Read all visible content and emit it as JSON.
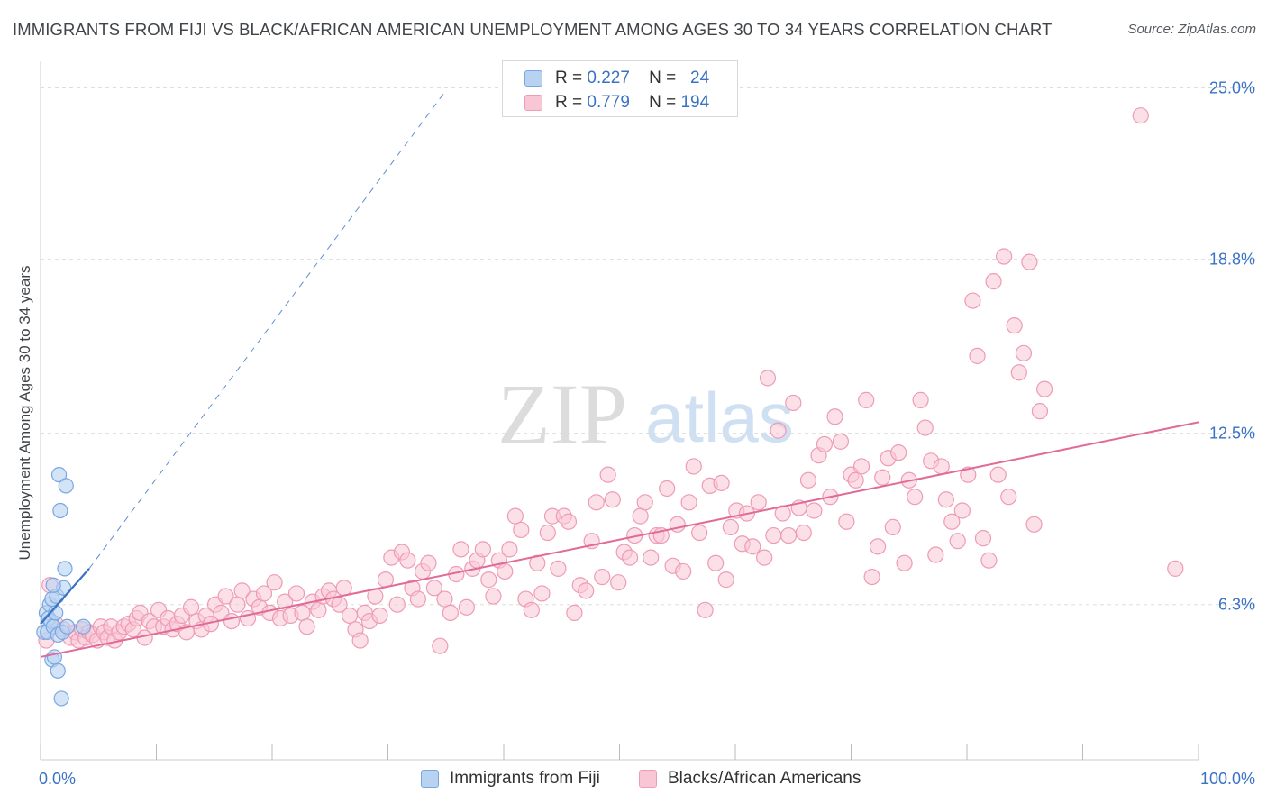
{
  "title": "IMMIGRANTS FROM FIJI VS BLACK/AFRICAN AMERICAN UNEMPLOYMENT AMONG AGES 30 TO 34 YEARS CORRELATION CHART",
  "source": "Source: ZipAtlas.com",
  "watermark": {
    "zip": "ZIP",
    "atlas": "atlas"
  },
  "colors": {
    "fiji_fill": "#b8d2f2",
    "fiji_stroke": "#7aa6e0",
    "fiji_line": "#3a72c4",
    "black_fill": "#f9c6d6",
    "black_stroke": "#ee9bb6",
    "black_line": "#e06b98",
    "axis_label": "#3a72c4",
    "grid": "#dddddd"
  },
  "legend_top": [
    {
      "r_label": "R =",
      "r_value": "0.227",
      "n_label": "N =",
      "n_value": "24"
    },
    {
      "r_label": "R =",
      "r_value": "0.779",
      "n_label": "N =",
      "n_value": "194"
    }
  ],
  "legend_bottom": [
    "Immigrants from Fiji",
    "Blacks/African Americans"
  ],
  "chart_data": {
    "type": "scatter",
    "title": "IMMIGRANTS FROM FIJI VS BLACK/AFRICAN AMERICAN UNEMPLOYMENT AMONG AGES 30 TO 34 YEARS CORRELATION CHART",
    "xlabel": "",
    "ylabel": "Unemployment Among Ages 30 to 34 years",
    "xlim": [
      0,
      100
    ],
    "ylim": [
      0,
      26
    ],
    "x_tick_labels": [
      "0.0%",
      "100.0%"
    ],
    "y_ticks": [
      6.3,
      12.5,
      18.8,
      25.0
    ],
    "y_tick_labels": [
      "6.3%",
      "12.5%",
      "18.8%",
      "25.0%"
    ],
    "grid": true,
    "legend_position": "top-center",
    "series": [
      {
        "name": "Immigrants from Fiji",
        "r": 0.227,
        "n": 24,
        "trend_solid": [
          [
            0,
            5.6
          ],
          [
            4.2,
            7.6
          ]
        ],
        "trend_dashed": [
          [
            4.2,
            7.6
          ],
          [
            35,
            24.9
          ]
        ],
        "points": [
          [
            0.3,
            5.3
          ],
          [
            0.5,
            6.0
          ],
          [
            0.6,
            5.3
          ],
          [
            0.7,
            5.8
          ],
          [
            0.8,
            6.3
          ],
          [
            0.9,
            5.7
          ],
          [
            1.0,
            4.3
          ],
          [
            1.0,
            6.5
          ],
          [
            1.1,
            5.5
          ],
          [
            1.2,
            4.4
          ],
          [
            1.3,
            6.0
          ],
          [
            1.4,
            6.6
          ],
          [
            1.5,
            3.9
          ],
          [
            1.5,
            5.2
          ],
          [
            1.6,
            11.0
          ],
          [
            1.7,
            9.7
          ],
          [
            1.8,
            2.9
          ],
          [
            1.9,
            5.3
          ],
          [
            2.0,
            6.9
          ],
          [
            2.1,
            7.6
          ],
          [
            2.2,
            10.6
          ],
          [
            2.3,
            5.5
          ],
          [
            1.1,
            7.0
          ],
          [
            3.7,
            5.5
          ]
        ]
      },
      {
        "name": "Blacks/African Americans",
        "r": 0.779,
        "n": 194,
        "trend": [
          [
            0,
            4.4
          ],
          [
            100,
            12.9
          ]
        ],
        "points": [
          [
            0.5,
            5.0
          ],
          [
            0.8,
            7.0
          ],
          [
            1.3,
            5.6
          ],
          [
            2.0,
            5.4
          ],
          [
            2.6,
            5.1
          ],
          [
            3.0,
            5.3
          ],
          [
            3.3,
            5.0
          ],
          [
            3.6,
            5.4
          ],
          [
            3.9,
            5.1
          ],
          [
            4.2,
            5.3
          ],
          [
            4.5,
            5.2
          ],
          [
            4.9,
            5.0
          ],
          [
            5.2,
            5.5
          ],
          [
            5.5,
            5.3
          ],
          [
            5.8,
            5.1
          ],
          [
            6.1,
            5.5
          ],
          [
            6.4,
            5.0
          ],
          [
            6.8,
            5.3
          ],
          [
            7.2,
            5.5
          ],
          [
            7.6,
            5.6
          ],
          [
            8.0,
            5.4
          ],
          [
            8.3,
            5.8
          ],
          [
            8.6,
            6.0
          ],
          [
            9.0,
            5.1
          ],
          [
            9.4,
            5.7
          ],
          [
            9.8,
            5.5
          ],
          [
            10.2,
            6.1
          ],
          [
            10.6,
            5.5
          ],
          [
            11.0,
            5.8
          ],
          [
            11.4,
            5.4
          ],
          [
            11.8,
            5.6
          ],
          [
            12.2,
            5.9
          ],
          [
            12.6,
            5.3
          ],
          [
            13.0,
            6.2
          ],
          [
            13.5,
            5.7
          ],
          [
            13.9,
            5.4
          ],
          [
            14.3,
            5.9
          ],
          [
            14.7,
            5.6
          ],
          [
            15.1,
            6.3
          ],
          [
            15.6,
            6.0
          ],
          [
            16.0,
            6.6
          ],
          [
            16.5,
            5.7
          ],
          [
            17.0,
            6.3
          ],
          [
            17.4,
            6.8
          ],
          [
            17.9,
            5.8
          ],
          [
            18.4,
            6.5
          ],
          [
            18.9,
            6.2
          ],
          [
            19.3,
            6.7
          ],
          [
            19.8,
            6.0
          ],
          [
            20.2,
            7.1
          ],
          [
            20.7,
            5.8
          ],
          [
            21.1,
            6.4
          ],
          [
            21.6,
            5.9
          ],
          [
            22.1,
            6.7
          ],
          [
            22.6,
            6.0
          ],
          [
            23.0,
            5.5
          ],
          [
            23.5,
            6.4
          ],
          [
            24.0,
            6.1
          ],
          [
            24.4,
            6.6
          ],
          [
            24.9,
            6.8
          ],
          [
            25.3,
            6.5
          ],
          [
            25.8,
            6.3
          ],
          [
            26.2,
            6.9
          ],
          [
            26.7,
            5.9
          ],
          [
            27.2,
            5.4
          ],
          [
            27.6,
            5.0
          ],
          [
            28.0,
            6.0
          ],
          [
            28.4,
            5.7
          ],
          [
            28.9,
            6.6
          ],
          [
            29.3,
            5.9
          ],
          [
            29.8,
            7.2
          ],
          [
            30.3,
            8.0
          ],
          [
            30.8,
            6.3
          ],
          [
            31.2,
            8.2
          ],
          [
            31.7,
            7.9
          ],
          [
            32.1,
            6.9
          ],
          [
            32.6,
            6.5
          ],
          [
            33.0,
            7.5
          ],
          [
            33.5,
            7.8
          ],
          [
            34.0,
            6.9
          ],
          [
            34.5,
            4.8
          ],
          [
            34.9,
            6.5
          ],
          [
            35.4,
            6.0
          ],
          [
            35.9,
            7.4
          ],
          [
            36.3,
            8.3
          ],
          [
            36.8,
            6.2
          ],
          [
            37.3,
            7.6
          ],
          [
            37.7,
            7.9
          ],
          [
            38.2,
            8.3
          ],
          [
            38.7,
            7.2
          ],
          [
            39.1,
            6.6
          ],
          [
            39.6,
            7.9
          ],
          [
            40.1,
            7.5
          ],
          [
            40.5,
            8.3
          ],
          [
            41.0,
            9.5
          ],
          [
            41.5,
            9.0
          ],
          [
            41.9,
            6.5
          ],
          [
            42.4,
            6.1
          ],
          [
            42.9,
            7.8
          ],
          [
            43.3,
            6.7
          ],
          [
            43.8,
            8.9
          ],
          [
            44.2,
            9.5
          ],
          [
            44.7,
            7.6
          ],
          [
            45.2,
            9.5
          ],
          [
            45.6,
            9.3
          ],
          [
            46.1,
            6.0
          ],
          [
            46.6,
            7.0
          ],
          [
            47.1,
            6.8
          ],
          [
            47.6,
            8.6
          ],
          [
            48.0,
            10.0
          ],
          [
            48.5,
            7.3
          ],
          [
            49.0,
            11.0
          ],
          [
            49.4,
            10.1
          ],
          [
            49.9,
            7.1
          ],
          [
            50.4,
            8.2
          ],
          [
            50.9,
            8.0
          ],
          [
            51.3,
            8.8
          ],
          [
            51.8,
            9.5
          ],
          [
            52.2,
            10.0
          ],
          [
            52.7,
            8.0
          ],
          [
            53.2,
            8.8
          ],
          [
            53.6,
            8.8
          ],
          [
            54.1,
            10.5
          ],
          [
            54.6,
            7.7
          ],
          [
            55.0,
            9.2
          ],
          [
            55.5,
            7.5
          ],
          [
            56.0,
            10.0
          ],
          [
            56.4,
            11.3
          ],
          [
            56.9,
            8.9
          ],
          [
            57.4,
            6.1
          ],
          [
            57.8,
            10.6
          ],
          [
            58.3,
            7.8
          ],
          [
            58.8,
            10.7
          ],
          [
            59.2,
            7.2
          ],
          [
            59.6,
            9.1
          ],
          [
            60.1,
            9.7
          ],
          [
            60.6,
            8.5
          ],
          [
            61.0,
            9.6
          ],
          [
            61.5,
            8.4
          ],
          [
            62.0,
            10.0
          ],
          [
            62.5,
            8.0
          ],
          [
            62.8,
            14.5
          ],
          [
            63.3,
            8.8
          ],
          [
            63.7,
            12.6
          ],
          [
            64.1,
            9.6
          ],
          [
            64.6,
            8.8
          ],
          [
            65.0,
            13.6
          ],
          [
            65.5,
            9.8
          ],
          [
            65.9,
            8.9
          ],
          [
            66.3,
            10.8
          ],
          [
            66.8,
            9.7
          ],
          [
            67.2,
            11.7
          ],
          [
            67.7,
            12.1
          ],
          [
            68.2,
            10.2
          ],
          [
            68.6,
            13.1
          ],
          [
            69.1,
            12.2
          ],
          [
            69.6,
            9.3
          ],
          [
            70.0,
            11.0
          ],
          [
            70.4,
            10.8
          ],
          [
            70.9,
            11.3
          ],
          [
            71.3,
            13.7
          ],
          [
            71.8,
            7.3
          ],
          [
            72.3,
            8.4
          ],
          [
            72.7,
            10.9
          ],
          [
            73.2,
            11.6
          ],
          [
            73.6,
            9.1
          ],
          [
            74.1,
            11.8
          ],
          [
            74.6,
            7.8
          ],
          [
            75.0,
            10.8
          ],
          [
            75.5,
            10.2
          ],
          [
            76.0,
            13.7
          ],
          [
            76.4,
            12.7
          ],
          [
            76.9,
            11.5
          ],
          [
            77.3,
            8.1
          ],
          [
            77.8,
            11.3
          ],
          [
            78.2,
            10.1
          ],
          [
            78.7,
            9.3
          ],
          [
            79.2,
            8.6
          ],
          [
            79.6,
            9.7
          ],
          [
            80.1,
            11.0
          ],
          [
            80.5,
            17.3
          ],
          [
            80.9,
            15.3
          ],
          [
            81.4,
            8.7
          ],
          [
            81.9,
            7.9
          ],
          [
            82.3,
            18.0
          ],
          [
            82.7,
            11.0
          ],
          [
            83.2,
            18.9
          ],
          [
            83.6,
            10.2
          ],
          [
            84.1,
            16.4
          ],
          [
            84.5,
            14.7
          ],
          [
            84.9,
            15.4
          ],
          [
            85.4,
            18.7
          ],
          [
            85.8,
            9.2
          ],
          [
            86.3,
            13.3
          ],
          [
            86.7,
            14.1
          ],
          [
            95.0,
            24.0
          ],
          [
            98.0,
            7.6
          ]
        ]
      }
    ]
  }
}
